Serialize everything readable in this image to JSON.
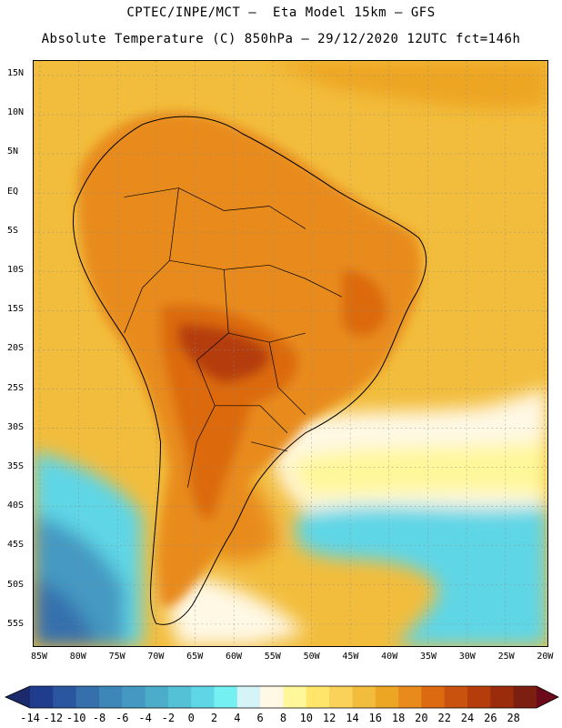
{
  "title": {
    "line1": "CPTEC/INPE/MCT –  Eta Model 15km – GFS",
    "line2": "Absolute Temperature (C) 850hPa – 29/12/2020 12UTC fct=146h"
  },
  "lat_labels": [
    "15N",
    "10N",
    "5N",
    "EQ",
    "5S",
    "10S",
    "15S",
    "20S",
    "25S",
    "30S",
    "35S",
    "40S",
    "45S",
    "50S",
    "55S"
  ],
  "lon_labels": [
    "85W",
    "80W",
    "75W",
    "70W",
    "65W",
    "60W",
    "55W",
    "50W",
    "45W",
    "40W",
    "35W",
    "30W",
    "25W",
    "20W"
  ],
  "colorbar": {
    "labels": [
      "-14",
      "-12",
      "-10",
      "-8",
      "-6",
      "-4",
      "-2",
      "0",
      "2",
      "4",
      "6",
      "8",
      "10",
      "12",
      "14",
      "16",
      "18",
      "20",
      "22",
      "24",
      "26",
      "28"
    ],
    "colors": [
      "#1f3d8c",
      "#2a569f",
      "#3570ad",
      "#3c86b8",
      "#4499c2",
      "#4badca",
      "#54c1d6",
      "#5fd6e6",
      "#74f0f2",
      "#d4f4f8",
      "#fff8e4",
      "#fff79a",
      "#ffe66a",
      "#fad25a",
      "#f2bd3c",
      "#eda524",
      "#e88b1c",
      "#dc6a10",
      "#c9520e",
      "#b53d0c",
      "#9a2c0c",
      "#7c1e10"
    ],
    "low_arrow_color": "#1b2a6b",
    "high_arrow_color": "#6a0a1a"
  },
  "map": {
    "ocean_warm": "#f2bd3c",
    "ocean_warmer": "#eda524",
    "land_hot": "#e88b1c",
    "land_hotter": "#dc6a10",
    "land_hottest": "#b53d0c",
    "cool_yellow": "#fff79a",
    "cool_cream": "#fff8e4",
    "cold_cyan": "#5fd6e6",
    "colder_blue": "#4499c2",
    "coldest_blue": "#3570ad"
  }
}
